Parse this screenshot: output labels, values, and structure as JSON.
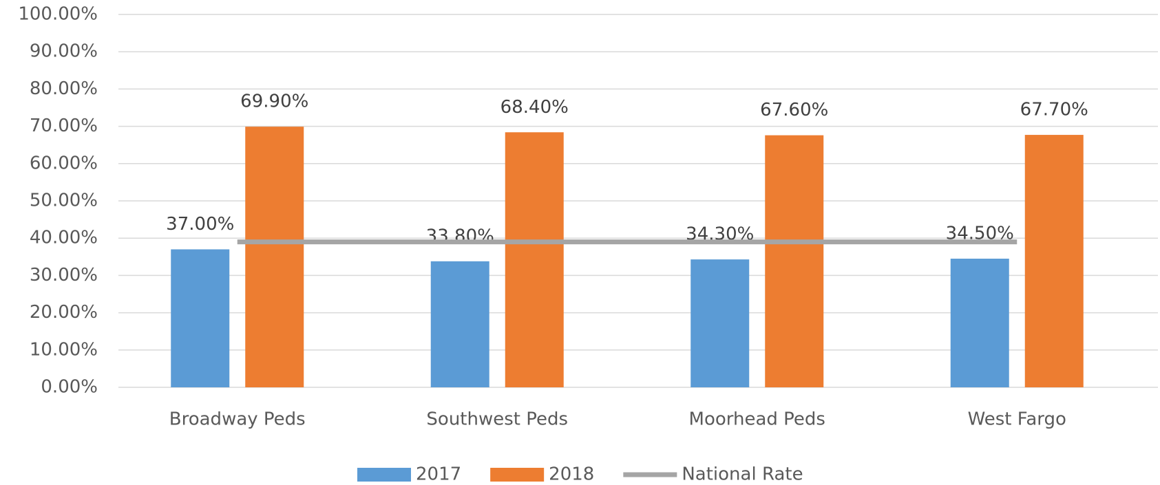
{
  "chart_data": {
    "type": "bar",
    "categories": [
      "Broadway Peds",
      "Southwest Peds",
      "Moorhead Peds",
      "West Fargo"
    ],
    "series": [
      {
        "name": "2017",
        "color": "#5b9bd5",
        "values": [
          37.0,
          33.8,
          34.3,
          34.5
        ],
        "value_labels": [
          "37.00%",
          "33.80%",
          "34.30%",
          "34.50%"
        ]
      },
      {
        "name": "2018",
        "color": "#ed7d31",
        "values": [
          69.9,
          68.4,
          67.6,
          67.7
        ],
        "value_labels": [
          "69.90%",
          "68.40%",
          "67.60%",
          "67.70%"
        ]
      },
      {
        "name": "National Rate",
        "type": "line",
        "color": "#a5a5a5",
        "values": [
          39,
          39,
          39,
          39
        ]
      }
    ],
    "ylim": [
      0,
      100
    ],
    "yticks": [
      {
        "value": 0,
        "label": "0.00%"
      },
      {
        "value": 10,
        "label": "10.00%"
      },
      {
        "value": 20,
        "label": "20.00%"
      },
      {
        "value": 30,
        "label": "30.00%"
      },
      {
        "value": 40,
        "label": "40.00%"
      },
      {
        "value": 50,
        "label": "50.00%"
      },
      {
        "value": 60,
        "label": "60.00%"
      },
      {
        "value": 70,
        "label": "70.00%"
      },
      {
        "value": 80,
        "label": "80.00%"
      },
      {
        "value": 90,
        "label": "90.00%"
      },
      {
        "value": 100,
        "label": "100.00%"
      }
    ],
    "grid": true,
    "legend": "bottom"
  }
}
